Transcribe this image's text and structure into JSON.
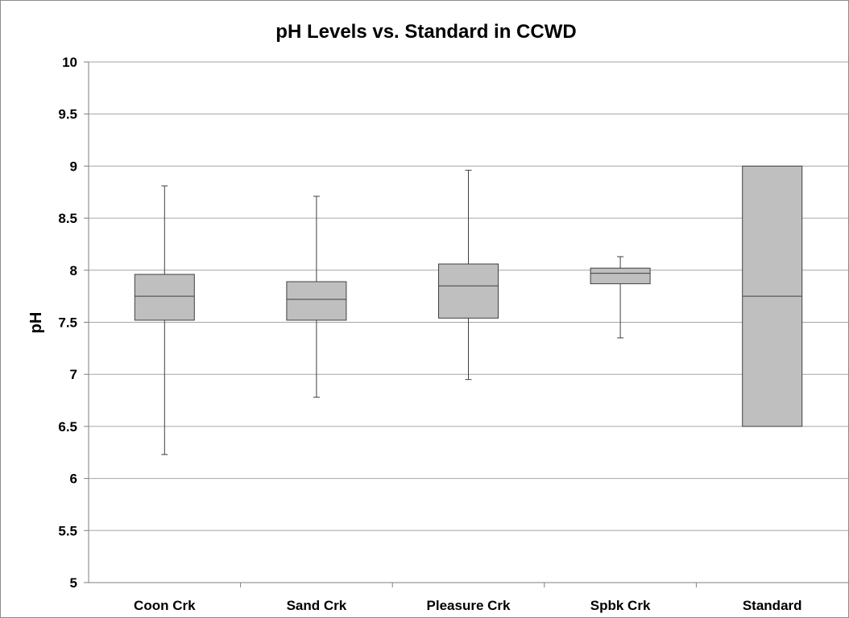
{
  "chart_data": {
    "type": "boxplot",
    "title": "pH Levels vs. Standard in CCWD",
    "xlabel": "",
    "ylabel": "pH",
    "ylim": [
      5,
      10
    ],
    "y_ticks": [
      5,
      5.5,
      6,
      6.5,
      7,
      7.5,
      8,
      8.5,
      9,
      9.5,
      10
    ],
    "y_tick_labels": [
      "5",
      "5.5",
      "6",
      "6.5",
      "7",
      "7.5",
      "8",
      "8.5",
      "9",
      "9.5",
      "10"
    ],
    "grid": true,
    "legend": "none",
    "categories": [
      "Coon Crk",
      "Sand Crk",
      "Pleasure Crk",
      "Spbk Crk",
      "Standard"
    ],
    "boxes": [
      {
        "category": "Coon Crk",
        "min": 6.23,
        "q1": 7.52,
        "median": 7.75,
        "q3": 7.96,
        "max": 8.81
      },
      {
        "category": "Sand Crk",
        "min": 6.78,
        "q1": 7.52,
        "median": 7.72,
        "q3": 7.89,
        "max": 8.71
      },
      {
        "category": "Pleasure Crk",
        "min": 6.95,
        "q1": 7.54,
        "median": 7.85,
        "q3": 8.06,
        "max": 8.96
      },
      {
        "category": "Spbk Crk",
        "min": 7.35,
        "q1": 7.87,
        "median": 7.97,
        "q3": 8.02,
        "max": 8.13
      },
      {
        "category": "Standard",
        "min": null,
        "q1": 6.5,
        "median": 7.75,
        "q3": 9.0,
        "max": null
      }
    ],
    "colors": {
      "box_fill": "#bfbfbf",
      "box_stroke": "#404040",
      "whisker": "#404040",
      "grid": "#a6a6a6",
      "axis": "#7f7f7f"
    }
  }
}
